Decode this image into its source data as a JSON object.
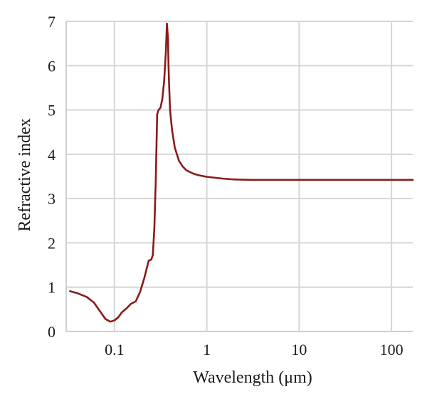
{
  "chart_data": {
    "type": "line",
    "xlabel": "Wavelength (μm)",
    "ylabel": "Refractive index",
    "x_scale": "log",
    "xlim": [
      0.03,
      170
    ],
    "ylim": [
      0,
      7
    ],
    "x_ticks": [
      0.1,
      1,
      10,
      100
    ],
    "x_tick_labels": [
      "0.1",
      "1",
      "10",
      "100"
    ],
    "y_ticks": [
      0,
      1,
      2,
      3,
      4,
      5,
      6,
      7
    ],
    "y_tick_labels": [
      "0",
      "1",
      "2",
      "3",
      "4",
      "5",
      "6",
      "7"
    ],
    "grid": true,
    "line_color": "#8b1a1a",
    "series": [
      {
        "x": [
          0.033,
          0.04,
          0.05,
          0.06,
          0.07,
          0.08,
          0.09,
          0.1,
          0.11,
          0.12,
          0.135,
          0.15,
          0.17,
          0.19,
          0.21,
          0.235,
          0.25,
          0.26,
          0.27,
          0.28,
          0.29,
          0.3,
          0.315,
          0.33,
          0.345,
          0.36,
          0.37,
          0.38,
          0.385,
          0.39,
          0.4,
          0.42,
          0.45,
          0.5,
          0.55,
          0.6,
          0.7,
          0.8,
          1,
          1.5,
          2,
          3,
          5,
          10,
          20,
          50,
          100,
          170
        ],
        "y": [
          0.91,
          0.86,
          0.78,
          0.65,
          0.45,
          0.28,
          0.22,
          0.25,
          0.32,
          0.43,
          0.52,
          0.62,
          0.68,
          0.9,
          1.2,
          1.6,
          1.62,
          1.72,
          2.3,
          3.4,
          4.9,
          5.0,
          5.05,
          5.25,
          5.65,
          6.3,
          6.95,
          6.6,
          6.0,
          5.6,
          5.0,
          4.55,
          4.15,
          3.85,
          3.72,
          3.64,
          3.57,
          3.53,
          3.49,
          3.45,
          3.43,
          3.42,
          3.42,
          3.42,
          3.42,
          3.42,
          3.42,
          3.42
        ]
      }
    ]
  }
}
